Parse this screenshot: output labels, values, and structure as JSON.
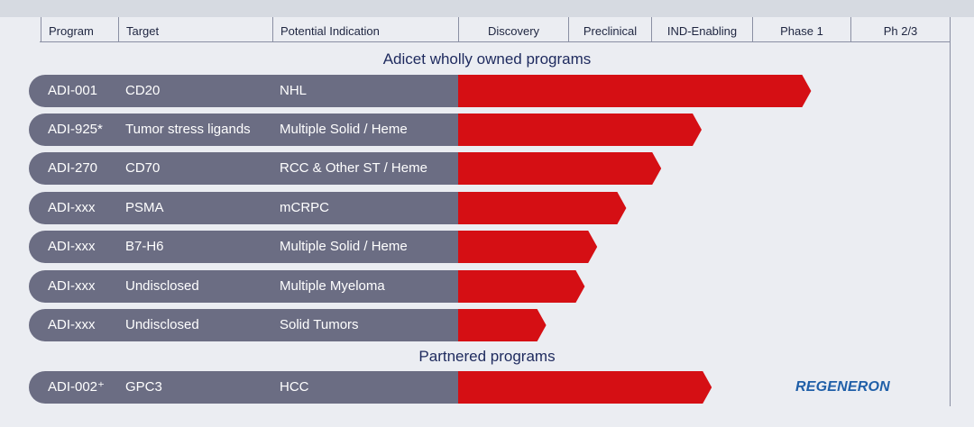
{
  "header": {
    "columns": [
      "Program",
      "Target",
      "Potential Indication",
      "Discovery",
      "Preclinical",
      "IND-Enabling",
      "Phase 1",
      "Ph 2/3"
    ]
  },
  "sections": {
    "owned_title": "Adicet wholly owned programs",
    "partnered_title": "Partnered programs"
  },
  "partner_logo": "REGENERON",
  "colors": {
    "bar": "#d50f14",
    "label_bg": "#6b6d83",
    "text": "#1e2540",
    "title": "#1e2a5e",
    "logo": "#1f5fa8"
  },
  "chart_data": {
    "type": "bar",
    "orientation": "horizontal",
    "title": "",
    "stages": [
      "Discovery",
      "Preclinical",
      "IND-Enabling",
      "Phase 1",
      "Ph 2/3"
    ],
    "rows": [
      {
        "program": "ADI-001",
        "target": "CD20",
        "indication": "NHL",
        "progress": 3.6,
        "section": "owned"
      },
      {
        "program": "ADI-925*",
        "target": "Tumor stress ligands",
        "indication": "Multiple Solid / Heme",
        "progress": 2.5,
        "section": "owned"
      },
      {
        "program": "ADI-270",
        "target": "CD70",
        "indication": "RCC & Other ST / Heme",
        "progress": 2.1,
        "section": "owned"
      },
      {
        "program": "ADI-xxx",
        "target": "PSMA",
        "indication": "mCRPC",
        "progress": 1.7,
        "section": "owned"
      },
      {
        "program": "ADI-xxx",
        "target": "B7-H6",
        "indication": "Multiple Solid / Heme",
        "progress": 1.35,
        "section": "owned"
      },
      {
        "program": "ADI-xxx",
        "target": "Undisclosed",
        "indication": "Multiple Myeloma",
        "progress": 1.2,
        "section": "owned"
      },
      {
        "program": "ADI-xxx",
        "target": "Undisclosed",
        "indication": "Solid Tumors",
        "progress": 0.8,
        "section": "owned"
      },
      {
        "program": "ADI-002⁺",
        "target": "GPC3",
        "indication": "HCC",
        "progress": 2.6,
        "section": "partnered"
      }
    ]
  }
}
